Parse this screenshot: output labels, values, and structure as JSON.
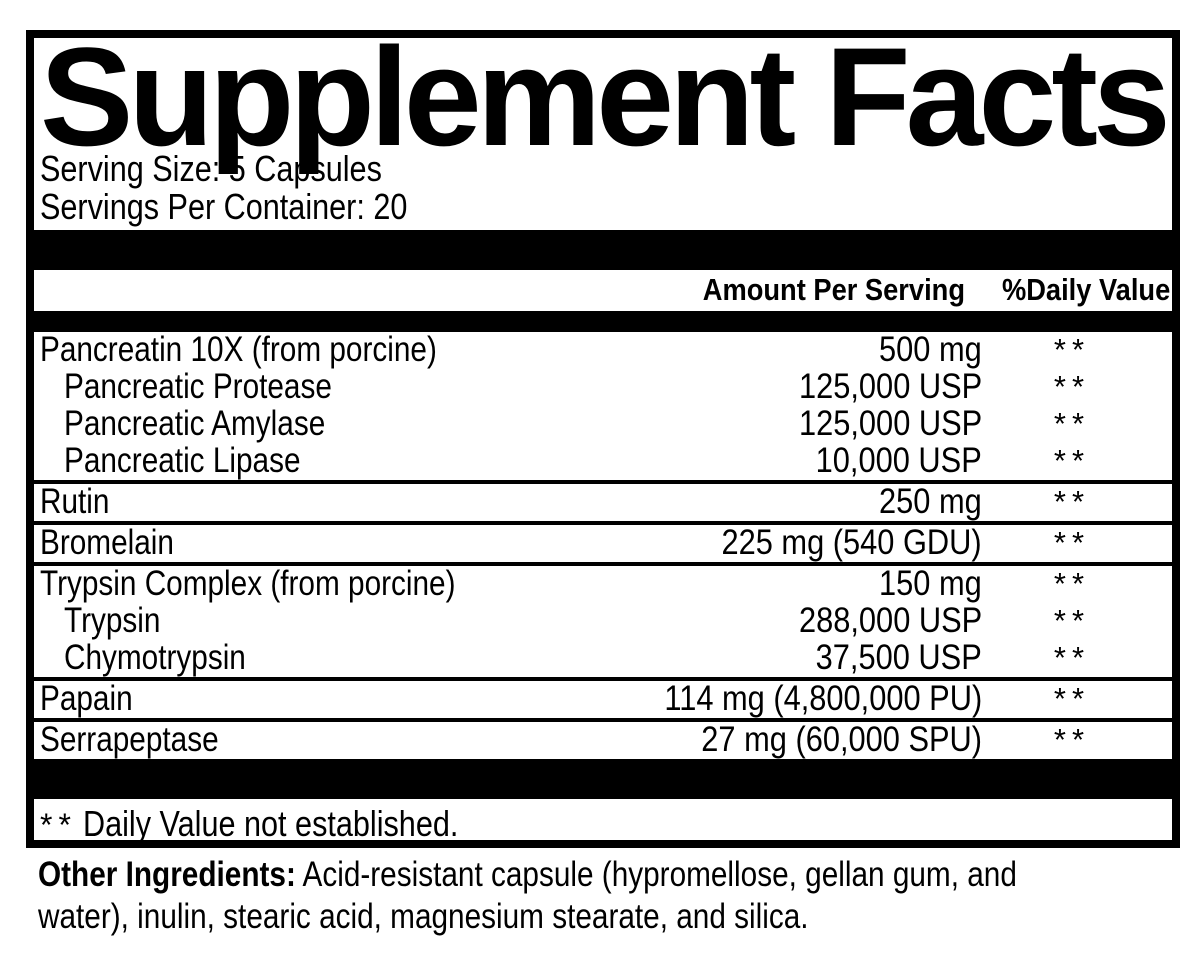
{
  "colors": {
    "text": "#000000",
    "background": "#ffffff"
  },
  "label": {
    "title": "Supplement Facts",
    "serving_size": "Serving Size: 5 Capsules",
    "servings_per_container": "Servings Per Container: 20",
    "columns": {
      "amount_header": "Amount Per Serving",
      "daily_value_header": "%Daily Value"
    },
    "rows": [
      {
        "name": "Pancreatin 10X (from porcine)",
        "amount": "500 mg",
        "daily_value": "**",
        "indent": false,
        "group_start": false
      },
      {
        "name": "Pancreatic Protease",
        "amount": "125,000 USP",
        "daily_value": "**",
        "indent": true,
        "group_start": false
      },
      {
        "name": "Pancreatic Amylase",
        "amount": "125,000 USP",
        "daily_value": "**",
        "indent": true,
        "group_start": false
      },
      {
        "name": "Pancreatic Lipase",
        "amount": "10,000 USP",
        "daily_value": "**",
        "indent": true,
        "group_start": false
      },
      {
        "name": "Rutin",
        "amount": "250 mg",
        "daily_value": "**",
        "indent": false,
        "group_start": true
      },
      {
        "name": "Bromelain",
        "amount": "225 mg (540 GDU)",
        "daily_value": "**",
        "indent": false,
        "group_start": true
      },
      {
        "name": "Trypsin Complex (from porcine)",
        "amount": "150 mg",
        "daily_value": "**",
        "indent": false,
        "group_start": true
      },
      {
        "name": "Trypsin",
        "amount": "288,000 USP",
        "daily_value": "**",
        "indent": true,
        "group_start": false
      },
      {
        "name": "Chymotrypsin",
        "amount": "37,500 USP",
        "daily_value": "**",
        "indent": true,
        "group_start": false
      },
      {
        "name": "Papain",
        "amount": "114 mg (4,800,000 PU)",
        "daily_value": "**",
        "indent": false,
        "group_start": true
      },
      {
        "name": "Serrapeptase",
        "amount": "27 mg (60,000 SPU)",
        "daily_value": "**",
        "indent": false,
        "group_start": true
      }
    ],
    "footnote": {
      "mark": "**",
      "text": "Daily Value not established."
    },
    "other_ingredients": {
      "label": "Other Ingredients:",
      "line1": "Acid-resistant capsule (hypromellose, gellan gum, and",
      "line2": "water), inulin, stearic acid, magnesium stearate, and silica."
    }
  }
}
